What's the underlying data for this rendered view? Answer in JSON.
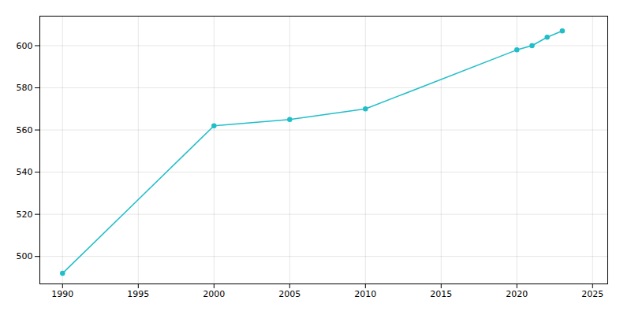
{
  "chart_data": {
    "type": "line",
    "x": [
      1990,
      2000,
      2005,
      2010,
      2020,
      2021,
      2022,
      2023
    ],
    "values": [
      492,
      562,
      565,
      570,
      598,
      600,
      604,
      607
    ],
    "color": "#22bec8",
    "marker": "o",
    "xlim": [
      1988.5,
      2026
    ],
    "ylim": [
      487,
      614
    ],
    "xticks": [
      1990,
      1995,
      2000,
      2005,
      2010,
      2015,
      2020,
      2025
    ],
    "yticks": [
      500,
      520,
      540,
      560,
      580,
      600
    ],
    "grid": true
  }
}
